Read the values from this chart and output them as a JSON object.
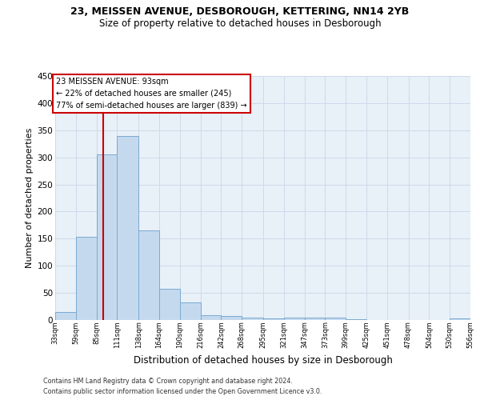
{
  "title1": "23, MEISSEN AVENUE, DESBOROUGH, KETTERING, NN14 2YB",
  "title2": "Size of property relative to detached houses in Desborough",
  "xlabel": "Distribution of detached houses by size in Desborough",
  "ylabel": "Number of detached properties",
  "footnote1": "Contains HM Land Registry data © Crown copyright and database right 2024.",
  "footnote2": "Contains public sector information licensed under the Open Government Licence v3.0.",
  "bar_color": "#c5d9ee",
  "bar_edge_color": "#7aaad0",
  "grid_color": "#c8d8e8",
  "bg_color": "#e8f0f8",
  "vline_color": "#cc0000",
  "property_size_sqm": 93,
  "property_label": "23 MEISSEN AVENUE: 93sqm",
  "smaller_pct": "22%",
  "smaller_count": 245,
  "larger_pct": "77%",
  "larger_count": 839,
  "bin_edges": [
    33,
    59,
    85,
    111,
    138,
    164,
    190,
    216,
    242,
    268,
    295,
    321,
    347,
    373,
    399,
    425,
    451,
    478,
    504,
    530,
    556
  ],
  "bin_labels": [
    "33sqm",
    "59sqm",
    "85sqm",
    "111sqm",
    "138sqm",
    "164sqm",
    "190sqm",
    "216sqm",
    "242sqm",
    "268sqm",
    "295sqm",
    "321sqm",
    "347sqm",
    "373sqm",
    "399sqm",
    "425sqm",
    "451sqm",
    "478sqm",
    "504sqm",
    "530sqm",
    "556sqm"
  ],
  "bar_heights": [
    15,
    153,
    305,
    340,
    165,
    57,
    33,
    9,
    8,
    5,
    3,
    5,
    5,
    5,
    2,
    0,
    0,
    0,
    0,
    3
  ],
  "ylim": [
    0,
    450
  ],
  "yticks": [
    0,
    50,
    100,
    150,
    200,
    250,
    300,
    350,
    400,
    450
  ]
}
